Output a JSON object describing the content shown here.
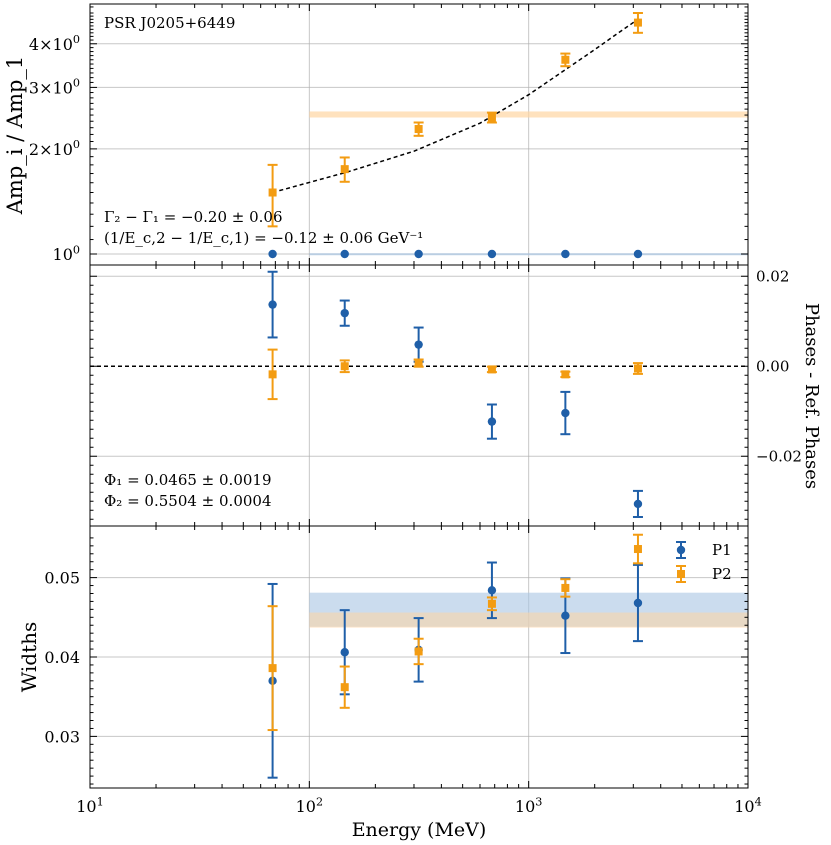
{
  "chart_data": [
    {
      "panel": "amplitude-ratio",
      "type": "scatter",
      "ylabel": "Amp_i / Amp_1",
      "yscale": "log",
      "xscale": "log",
      "xlim": [
        10,
        10000
      ],
      "ylim": [
        0.93,
        5.2
      ],
      "yticks": [
        {
          "value": 1,
          "label": "10^0"
        },
        {
          "value": 2,
          "label": "2×10^0"
        },
        {
          "value": 3,
          "label": "3×10^0"
        },
        {
          "value": 4,
          "label": "4×10^0"
        }
      ],
      "annotation_title": "PSR J0205+6449",
      "annotations": [
        "Γ₂ − Γ₁ = −0.20 ± 0.06",
        "(1/E_c,2 − 1/E_c,1) = −0.12 ± 0.06 GeV⁻¹"
      ],
      "series": [
        {
          "name": "P1",
          "x": [
            68,
            145,
            315,
            680,
            1470,
            3150
          ],
          "y": [
            1.0,
            1.0,
            1.0,
            1.0,
            1.0,
            1.0
          ],
          "yerr": [
            0,
            0,
            0,
            0,
            0,
            0
          ]
        },
        {
          "name": "P2",
          "x": [
            68,
            145,
            315,
            680,
            1470,
            3150
          ],
          "y": [
            1.5,
            1.75,
            2.28,
            2.46,
            3.6,
            4.6
          ],
          "yerr": [
            0.3,
            0.14,
            0.1,
            0.08,
            0.15,
            0.3
          ]
        }
      ],
      "fit_curve": {
        "name": "P2 model",
        "x": [
          68,
          150,
          300,
          600,
          1000,
          1500,
          2000,
          2500,
          3150
        ],
        "y": [
          1.5,
          1.72,
          1.97,
          2.37,
          2.86,
          3.4,
          3.85,
          4.25,
          4.7
        ]
      },
      "bands": [
        {
          "series": "P2",
          "x_from": 100,
          "x_to": 10000,
          "y_low": 2.46,
          "y_high": 2.56
        },
        {
          "series": "P1",
          "x_from": 100,
          "x_to": 10000,
          "y_low": 0.995,
          "y_high": 1.005
        }
      ]
    },
    {
      "panel": "phases",
      "type": "scatter",
      "ylabel": "Phases - Ref. Phases",
      "xscale": "log",
      "xlim": [
        10,
        10000
      ],
      "ylim": [
        -0.0355,
        0.0225
      ],
      "yticks": [
        {
          "value": 0.02,
          "label": "0.02"
        },
        {
          "value": 0.0,
          "label": "0.00"
        },
        {
          "value": -0.02,
          "label": "−0.02"
        }
      ],
      "reference_line": 0,
      "annotations": [
        "Φ₁ = 0.0465 ± 0.0019",
        "Φ₂ = 0.5504 ± 0.0004"
      ],
      "series": [
        {
          "name": "P1",
          "x": [
            68,
            145,
            315,
            680,
            1470,
            3150
          ],
          "y": [
            0.0137,
            0.0118,
            0.0048,
            -0.0123,
            -0.0104,
            -0.0306
          ],
          "yerr": [
            0.0073,
            0.0028,
            0.0038,
            0.0038,
            0.0047,
            0.0029
          ]
        },
        {
          "name": "P2",
          "x": [
            68,
            145,
            315,
            680,
            1470,
            3150
          ],
          "y": [
            -0.0018,
            0.0,
            0.0007,
            -0.0007,
            -0.0018,
            -0.0005
          ],
          "yerr": [
            0.0055,
            0.0013,
            0.0008,
            0.0006,
            0.0006,
            0.0012
          ]
        }
      ]
    },
    {
      "panel": "widths",
      "type": "scatter",
      "ylabel": "Widths",
      "xlabel": "Energy (MeV)",
      "xscale": "log",
      "xlim": [
        10,
        10000
      ],
      "ylim": [
        0.0235,
        0.0565
      ],
      "xticks": [
        {
          "value": 10,
          "label": "10^1"
        },
        {
          "value": 100,
          "label": "10^2"
        },
        {
          "value": 1000,
          "label": "10^3"
        },
        {
          "value": 10000,
          "label": "10^4"
        }
      ],
      "yticks": [
        {
          "value": 0.05,
          "label": "0.05"
        },
        {
          "value": 0.04,
          "label": "0.04"
        },
        {
          "value": 0.03,
          "label": "0.03"
        }
      ],
      "legend": {
        "position": "top-right",
        "entries": [
          "P1",
          "P2"
        ]
      },
      "series": [
        {
          "name": "P1",
          "x": [
            68,
            145,
            315,
            680,
            1470,
            3150
          ],
          "y": [
            0.037,
            0.0406,
            0.0409,
            0.0484,
            0.0452,
            0.0468
          ],
          "yerr": [
            0.0122,
            0.0053,
            0.004,
            0.0035,
            0.0047,
            0.0048
          ]
        },
        {
          "name": "P2",
          "x": [
            68,
            145,
            315,
            680,
            1470,
            3150
          ],
          "y": [
            0.0386,
            0.0362,
            0.0407,
            0.0467,
            0.0487,
            0.0536
          ],
          "yerr": [
            0.0078,
            0.0026,
            0.0016,
            0.0008,
            0.0011,
            0.0018
          ]
        }
      ],
      "bands": [
        {
          "series": "P1",
          "x_from": 100,
          "x_to": 10000,
          "y_low": 0.0438,
          "y_high": 0.0481
        },
        {
          "series": "P2",
          "x_from": 100,
          "x_to": 10000,
          "y_low": 0.0437,
          "y_high": 0.0456
        }
      ]
    }
  ],
  "colors": {
    "P1": "#1f5fa8",
    "P2": "#f39c12",
    "P1_band": "#a9c4e2",
    "P2_band": "#ffd6a3",
    "grid": "#b0b0b0"
  }
}
